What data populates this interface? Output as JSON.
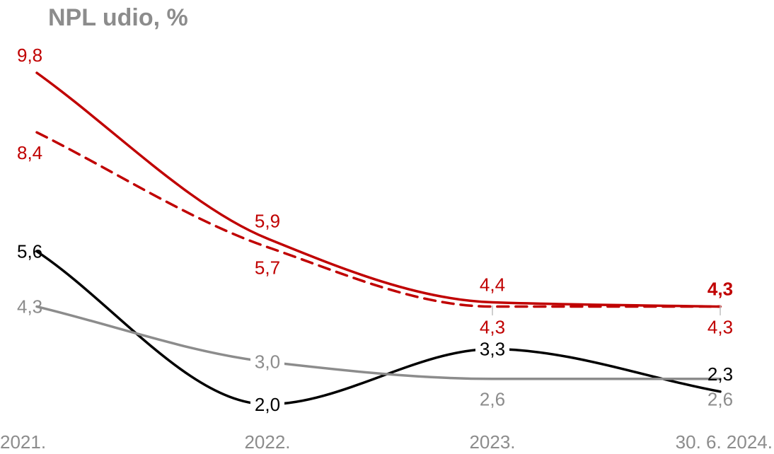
{
  "chart_data": {
    "type": "line",
    "title": "NPL udio, %",
    "categories": [
      "2021.",
      "2022.",
      "2023.",
      "30. 6. 2024."
    ],
    "colors": {
      "red": "#c00000",
      "black": "#000000",
      "gray": "#8c8c8c"
    },
    "series": [
      {
        "values": [
          9.8,
          5.9,
          4.4,
          4.3
        ],
        "color": "#c00000",
        "dash": false,
        "labels": [
          "9,8",
          "5,9",
          "4,4",
          "4,3"
        ],
        "label_pos": [
          "above",
          "above",
          "above",
          "above"
        ],
        "bold_last": true
      },
      {
        "values": [
          8.4,
          5.7,
          4.3,
          4.3
        ],
        "color": "#c00000",
        "dash": true,
        "labels": [
          "8,4",
          "5,7",
          "4,3",
          "4,3"
        ],
        "label_pos": [
          "below",
          "below",
          "below",
          "below"
        ],
        "bold_last": false
      },
      {
        "values": [
          5.6,
          2.0,
          3.3,
          2.3
        ],
        "color": "#000000",
        "dash": false,
        "labels": [
          "5,6",
          "2,0",
          "3,3",
          "2,3"
        ],
        "label_pos": [
          "left",
          "left",
          "left",
          "above"
        ],
        "bold_last": false
      },
      {
        "values": [
          4.3,
          3.0,
          2.6,
          2.6
        ],
        "color": "#8c8c8c",
        "dash": false,
        "labels": [
          "4,3",
          "3,0",
          "2,6",
          "2,6"
        ],
        "label_pos": [
          "left",
          "left",
          "below",
          "below"
        ],
        "bold_last": false
      }
    ],
    "grid": false,
    "legend": "none"
  }
}
